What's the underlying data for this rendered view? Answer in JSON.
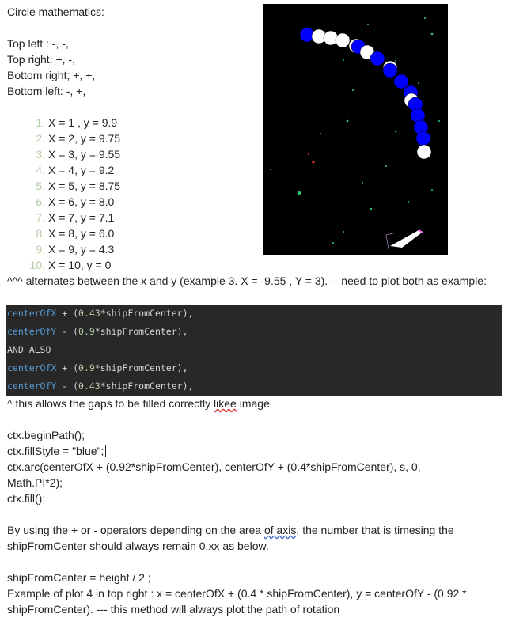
{
  "doc": {
    "title": "Circle mathematics:",
    "quadrants": [
      "Top left : -, -,",
      "Top right: +, -,",
      "Bottom right; +, +,",
      "Bottom left: -, +,"
    ],
    "points": [
      {
        "n": "1.",
        "text": "X = 1 , y = 9.9"
      },
      {
        "n": "2.",
        "text": "X = 2, y = 9.75"
      },
      {
        "n": "3.",
        "text": "X = 3, y = 9.55"
      },
      {
        "n": "4.",
        "text": "X = 4, y = 9.2"
      },
      {
        "n": "5.",
        "text": "X = 5, y = 8.75"
      },
      {
        "n": "6.",
        "text": "X = 6, y = 8.0"
      },
      {
        "n": "7.",
        "text": "X = 7, y = 7.1"
      },
      {
        "n": "8.",
        "text": "X = 8, y = 6.0"
      },
      {
        "n": "9.",
        "text": "X = 9, y = 4.3"
      },
      {
        "n": "10.",
        "text": "X = 10, y = 0"
      }
    ],
    "alternates_note": "^^^ alternates between the x and y (example 3. X = -9.55 , Y = 3). -- need to plot both as example:",
    "code_lines": [
      {
        "var": "centerOfX",
        "op": " + (",
        "num": "0.43",
        "rest": "*shipFromCenter),"
      },
      {
        "var": "centerOfY",
        "op": " - (",
        "num": "0.9",
        "rest": "*shipFromCenter),"
      },
      {
        "plain": "AND ALSO"
      },
      {
        "var": "centerOfX",
        "op": " + (",
        "num": "0.9",
        "rest": "*shipFromCenter),"
      },
      {
        "var": "centerOfY",
        "op": " - (",
        "num": "0.43",
        "rest": "*shipFromCenter),"
      }
    ],
    "gaps_note_pre": "^ this allows the gaps to be filled correctly ",
    "gaps_note_misspelled": "likee",
    "gaps_note_post": " image",
    "code2": [
      "ctx.beginPath();",
      "ctx.fillStyle = \"blue\";",
      "ctx.arc(centerOfX + (0.92*shipFromCenter),  centerOfY + (0.4*shipFromCenter), s, 0,",
      "Math.PI*2);",
      "ctx.fill();"
    ],
    "operators_pre": "By using the + or - operators depending on the area ",
    "operators_underlined": "of axis",
    "operators_post": ", the number that is timesing the",
    "operators_line2": "shipFromCenter should always remain 0.xx as below.",
    "ship_formula": "shipFromCenter = height / 2 ;",
    "example_line1": "Example of plot 4 in top right : x = centerOfX + (0.4 * shipFromCenter), y = centerOfY - (0.92 *",
    "example_line2": "shipFromCenter). --- this method will always plot the path of rotation"
  },
  "colors": {
    "code_bg": "#282828",
    "code_var": "#569cd6",
    "code_num": "#b5cea8",
    "scene_bg": "#000000",
    "ball_blue": "#0000ff",
    "ball_white": "#ffffff",
    "star_green": "#2ecc71",
    "trail_pink": "#ff66ff"
  }
}
